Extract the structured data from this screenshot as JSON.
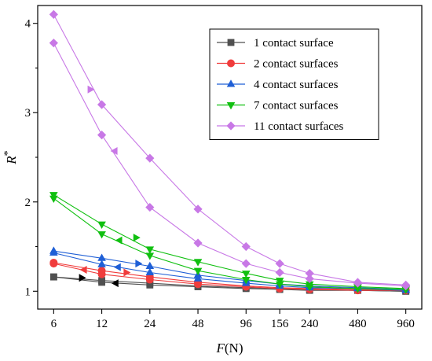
{
  "chart_data": {
    "type": "line",
    "xlabel_main": "F",
    "xlabel_unit": "(N)",
    "ylabel_main": "R",
    "ylabel_sup": "*",
    "x_scale": "log",
    "x_ticks": [
      6,
      12,
      24,
      48,
      96,
      156,
      240,
      480,
      960
    ],
    "y_ticks": [
      1,
      2,
      3,
      4
    ],
    "ylim": [
      0.8,
      4.2
    ],
    "legend_position": "top-right",
    "grid": false,
    "series": [
      {
        "name": "1 contact surface",
        "color": "#505050",
        "marker": "square",
        "upper": [
          [
            6,
            1.16
          ],
          [
            12,
            1.12
          ],
          [
            24,
            1.09
          ],
          [
            48,
            1.06
          ],
          [
            96,
            1.04
          ],
          [
            156,
            1.03
          ],
          [
            240,
            1.02
          ],
          [
            480,
            1.01
          ],
          [
            960,
            1.0
          ]
        ],
        "lower": [
          [
            6,
            1.16
          ],
          [
            12,
            1.1
          ],
          [
            24,
            1.07
          ],
          [
            48,
            1.05
          ],
          [
            96,
            1.03
          ],
          [
            156,
            1.02
          ],
          [
            240,
            1.01
          ],
          [
            480,
            1.01
          ],
          [
            960,
            1.0
          ]
        ]
      },
      {
        "name": "2 contact surfaces",
        "color": "#f03c3c",
        "marker": "circle",
        "upper": [
          [
            6,
            1.32
          ],
          [
            12,
            1.23
          ],
          [
            24,
            1.16
          ],
          [
            48,
            1.1
          ],
          [
            96,
            1.06
          ],
          [
            156,
            1.04
          ],
          [
            240,
            1.03
          ],
          [
            480,
            1.02
          ],
          [
            960,
            1.01
          ]
        ],
        "lower": [
          [
            6,
            1.31
          ],
          [
            12,
            1.19
          ],
          [
            24,
            1.13
          ],
          [
            48,
            1.08
          ],
          [
            96,
            1.05
          ],
          [
            156,
            1.03
          ],
          [
            240,
            1.02
          ],
          [
            480,
            1.01
          ],
          [
            960,
            1.01
          ]
        ]
      },
      {
        "name": "4 contact surfaces",
        "color": "#1f5fd6",
        "marker": "triangle-up",
        "upper": [
          [
            6,
            1.45
          ],
          [
            12,
            1.37
          ],
          [
            24,
            1.28
          ],
          [
            48,
            1.18
          ],
          [
            96,
            1.12
          ],
          [
            156,
            1.08
          ],
          [
            240,
            1.06
          ],
          [
            480,
            1.04
          ],
          [
            960,
            1.02
          ]
        ],
        "lower": [
          [
            6,
            1.43
          ],
          [
            12,
            1.3
          ],
          [
            24,
            1.21
          ],
          [
            48,
            1.14
          ],
          [
            96,
            1.09
          ],
          [
            156,
            1.06
          ],
          [
            240,
            1.04
          ],
          [
            480,
            1.03
          ],
          [
            960,
            1.01
          ]
        ]
      },
      {
        "name": "7 contact surfaces",
        "color": "#10c010",
        "marker": "triangle-down",
        "upper": [
          [
            6,
            2.08
          ],
          [
            12,
            1.75
          ],
          [
            24,
            1.47
          ],
          [
            48,
            1.33
          ],
          [
            96,
            1.2
          ],
          [
            156,
            1.12
          ],
          [
            240,
            1.08
          ],
          [
            480,
            1.05
          ],
          [
            960,
            1.03
          ]
        ],
        "lower": [
          [
            6,
            2.04
          ],
          [
            12,
            1.64
          ],
          [
            24,
            1.4
          ],
          [
            48,
            1.23
          ],
          [
            96,
            1.13
          ],
          [
            156,
            1.08
          ],
          [
            240,
            1.05
          ],
          [
            480,
            1.03
          ],
          [
            960,
            1.02
          ]
        ]
      },
      {
        "name": "11 contact surfaces",
        "color": "#c878e6",
        "marker": "diamond",
        "upper": [
          [
            6,
            4.1
          ],
          [
            12,
            3.09
          ],
          [
            24,
            2.49
          ],
          [
            48,
            1.92
          ],
          [
            96,
            1.5
          ],
          [
            156,
            1.31
          ],
          [
            240,
            1.2
          ],
          [
            480,
            1.1
          ],
          [
            960,
            1.07
          ]
        ],
        "lower": [
          [
            6,
            3.78
          ],
          [
            12,
            2.75
          ],
          [
            24,
            1.94
          ],
          [
            48,
            1.54
          ],
          [
            96,
            1.31
          ],
          [
            156,
            1.21
          ],
          [
            240,
            1.14
          ],
          [
            480,
            1.09
          ],
          [
            960,
            1.06
          ]
        ]
      }
    ],
    "arrows": [
      {
        "color": "#000000",
        "direction": "right",
        "x": 9.1,
        "y": 1.15
      },
      {
        "color": "#000000",
        "direction": "left",
        "x": 14.5,
        "y": 1.09
      },
      {
        "color": "#f03c3c",
        "direction": "left",
        "x": 9.2,
        "y": 1.24
      },
      {
        "color": "#f03c3c",
        "direction": "right",
        "x": 17.3,
        "y": 1.21
      },
      {
        "color": "#1f5fd6",
        "direction": "left",
        "x": 15.0,
        "y": 1.27
      },
      {
        "color": "#1f5fd6",
        "direction": "right",
        "x": 20.5,
        "y": 1.31
      },
      {
        "color": "#10c010",
        "direction": "left",
        "x": 15.3,
        "y": 1.57
      },
      {
        "color": "#10c010",
        "direction": "right",
        "x": 19.9,
        "y": 1.6
      },
      {
        "color": "#c878e6",
        "direction": "right",
        "x": 10.3,
        "y": 3.26
      },
      {
        "color": "#c878e6",
        "direction": "left",
        "x": 14.3,
        "y": 2.57
      }
    ]
  }
}
